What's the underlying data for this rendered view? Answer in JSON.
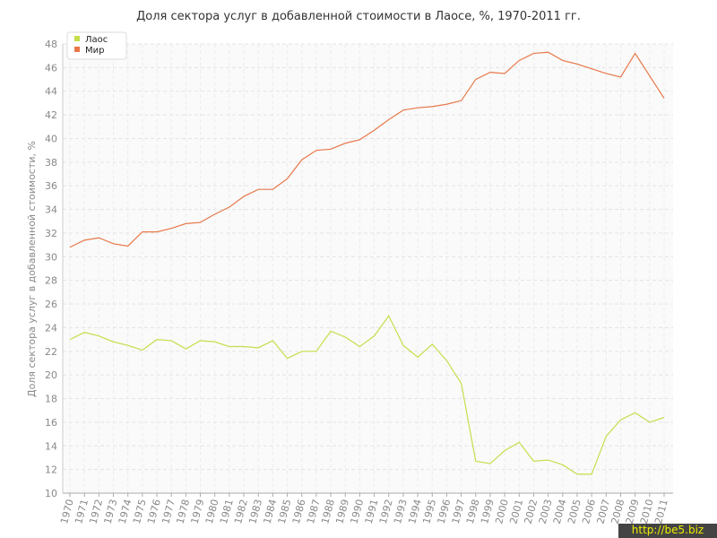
{
  "chart_data": {
    "type": "line",
    "title": "Доля сектора услуг в добавленной стоимости в Лаосе, %, 1970-2011 гг.",
    "y_label": "Доля сектора услуг в добавленной стоимости, %",
    "categories": [
      "1970",
      "1971",
      "1972",
      "1973",
      "1974",
      "1975",
      "1976",
      "1977",
      "1978",
      "1979",
      "1980",
      "1981",
      "1982",
      "1983",
      "1984",
      "1985",
      "1986",
      "1987",
      "1988",
      "1989",
      "1990",
      "1991",
      "1992",
      "1993",
      "1994",
      "1995",
      "1996",
      "1997",
      "1998",
      "1999",
      "2000",
      "2001",
      "2002",
      "2003",
      "2004",
      "2005",
      "2006",
      "2007",
      "2008",
      "2009",
      "2010",
      "2011"
    ],
    "series": [
      {
        "name": "Лаос",
        "color": "#c5de4a",
        "values": [
          23.0,
          23.6,
          23.3,
          22.8,
          22.5,
          22.1,
          23.0,
          22.9,
          22.2,
          22.9,
          22.8,
          22.4,
          22.4,
          22.3,
          22.9,
          21.4,
          22.0,
          22.0,
          23.7,
          23.2,
          22.4,
          23.3,
          25.0,
          22.5,
          21.5,
          22.6,
          21.2,
          19.3,
          12.7,
          12.5,
          13.6,
          14.3,
          12.7,
          12.8,
          12.4,
          11.6,
          11.6,
          14.8,
          16.2,
          16.8,
          16.0,
          16.4
        ]
      },
      {
        "name": "Мир",
        "color": "#e8784a",
        "values": [
          30.8,
          31.4,
          31.6,
          31.1,
          30.9,
          32.1,
          32.1,
          32.4,
          32.8,
          32.9,
          33.6,
          34.2,
          35.1,
          35.7,
          35.7,
          36.6,
          38.2,
          39.0,
          39.1,
          39.6,
          39.9,
          40.7,
          41.6,
          42.4,
          42.6,
          42.7,
          42.9,
          43.2,
          45.0,
          45.6,
          45.5,
          46.6,
          47.2,
          47.3,
          46.6,
          46.3,
          45.9,
          45.5,
          45.2,
          47.2,
          45.3,
          43.4
        ]
      }
    ],
    "ylim": [
      10,
      48
    ],
    "yticks": [
      10,
      12,
      14,
      16,
      18,
      20,
      22,
      24,
      26,
      28,
      30,
      32,
      34,
      36,
      38,
      40,
      42,
      44,
      46,
      48
    ],
    "grid": true,
    "legend": "top-left",
    "watermark": "http://be5.biz"
  }
}
